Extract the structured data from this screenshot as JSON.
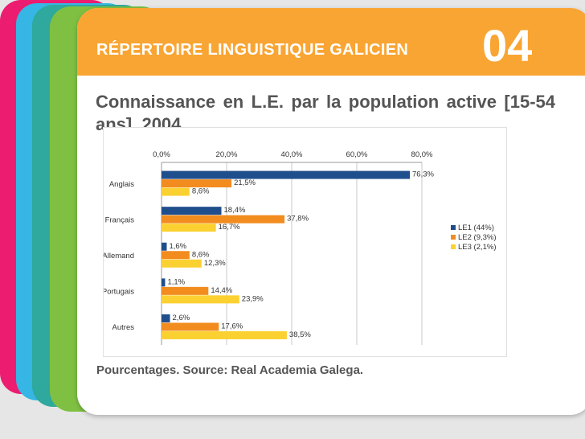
{
  "header": {
    "title": "RÉPERTOIRE LINGUISTIQUE GALICIEN",
    "number": "04"
  },
  "subtitle": "Connaissance en L.E. par la population active [15-54 ans]. 2004.",
  "source": "Pourcentages. Source: Real Academia Galega.",
  "colors": {
    "header": "#f9a533",
    "le1": "#1f4e8c",
    "le2": "#f28c1e",
    "le3": "#fbd131",
    "tab_pink": "#ec1c71",
    "tab_blue": "#35b6e4",
    "tab_teal": "#2fa89d",
    "tab_green": "#7fc043"
  },
  "chart_data": {
    "type": "bar",
    "orientation": "horizontal",
    "categories": [
      "Anglais",
      "Français",
      "Allemand",
      "Portugais",
      "Autres"
    ],
    "series": [
      {
        "name": "LE1 (44%)",
        "values": [
          76.3,
          18.4,
          1.6,
          1.1,
          2.6
        ],
        "labels": [
          "76,3%",
          "18,4%",
          "1,6%",
          "1,1%",
          "2,6%"
        ]
      },
      {
        "name": "LE2 (9,3%)",
        "values": [
          21.5,
          37.8,
          8.6,
          14.4,
          17.6
        ],
        "labels": [
          "21,5%",
          "37,8%",
          "8,6%",
          "14,4%",
          "17,6%"
        ]
      },
      {
        "name": "LE3 (2,1%)",
        "values": [
          8.6,
          16.7,
          12.3,
          23.9,
          38.5
        ],
        "labels": [
          "8,6%",
          "16,7%",
          "12,3%",
          "23,9%",
          "38,5%"
        ]
      }
    ],
    "xlim": [
      0,
      80
    ],
    "xticks": [
      0,
      20,
      40,
      60,
      80
    ],
    "xtick_labels": [
      "0,0%",
      "20,0%",
      "40,0%",
      "60,0%",
      "80,0%"
    ],
    "xaxis_position": "top",
    "grid": true,
    "legend": "right"
  }
}
